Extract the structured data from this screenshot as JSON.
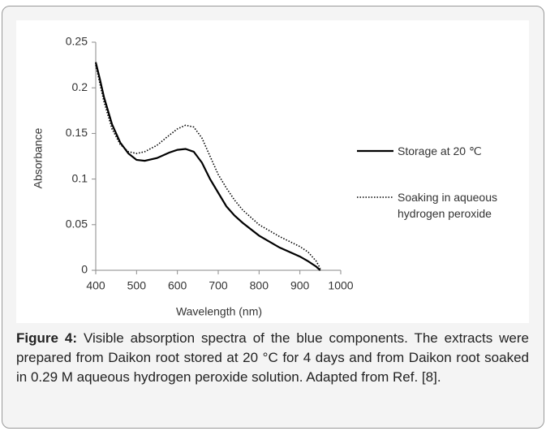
{
  "chart_data": {
    "type": "line",
    "xlabel": "Wavelength (nm)",
    "ylabel": "Absorbance",
    "xlim": [
      400,
      1000
    ],
    "xticks": [
      400,
      500,
      600,
      700,
      800,
      900,
      1000
    ],
    "ylim": [
      0,
      0.25
    ],
    "yticks": [
      0,
      0.05,
      0.1,
      0.15,
      0.2,
      0.25
    ],
    "grid": false,
    "legend": "right",
    "series": [
      {
        "name": "Storage at 20 ℃",
        "color": "#000000",
        "style": "solid",
        "x": [
          400,
          410,
          420,
          440,
          460,
          480,
          500,
          520,
          550,
          580,
          600,
          620,
          640,
          660,
          680,
          700,
          720,
          740,
          760,
          800,
          850,
          900,
          920,
          940,
          950
        ],
        "values": [
          0.228,
          0.21,
          0.19,
          0.16,
          0.14,
          0.128,
          0.121,
          0.12,
          0.123,
          0.129,
          0.132,
          0.133,
          0.13,
          0.118,
          0.1,
          0.085,
          0.07,
          0.06,
          0.052,
          0.038,
          0.025,
          0.015,
          0.01,
          0.004,
          0
        ]
      },
      {
        "name": "Soaking in aqueous hydrogen peroxide",
        "color": "#000000",
        "style": "dotted",
        "x": [
          400,
          420,
          440,
          460,
          480,
          500,
          520,
          550,
          580,
          600,
          620,
          640,
          660,
          680,
          700,
          720,
          740,
          760,
          800,
          850,
          900,
          920,
          940,
          950
        ],
        "values": [
          0.225,
          0.185,
          0.155,
          0.138,
          0.13,
          0.128,
          0.13,
          0.137,
          0.148,
          0.155,
          0.159,
          0.157,
          0.145,
          0.125,
          0.105,
          0.09,
          0.077,
          0.066,
          0.05,
          0.037,
          0.026,
          0.02,
          0.01,
          0.002
        ]
      }
    ],
    "caption": {
      "label": "Figure 4:",
      "text": "Visible absorption spectra of the blue components. The extracts were prepared from Daikon root stored at 20 °C for 4 days and from Daikon root soaked in 0.29 M aqueous hydrogen peroxide solution. Adapted from Ref. [8]."
    }
  }
}
